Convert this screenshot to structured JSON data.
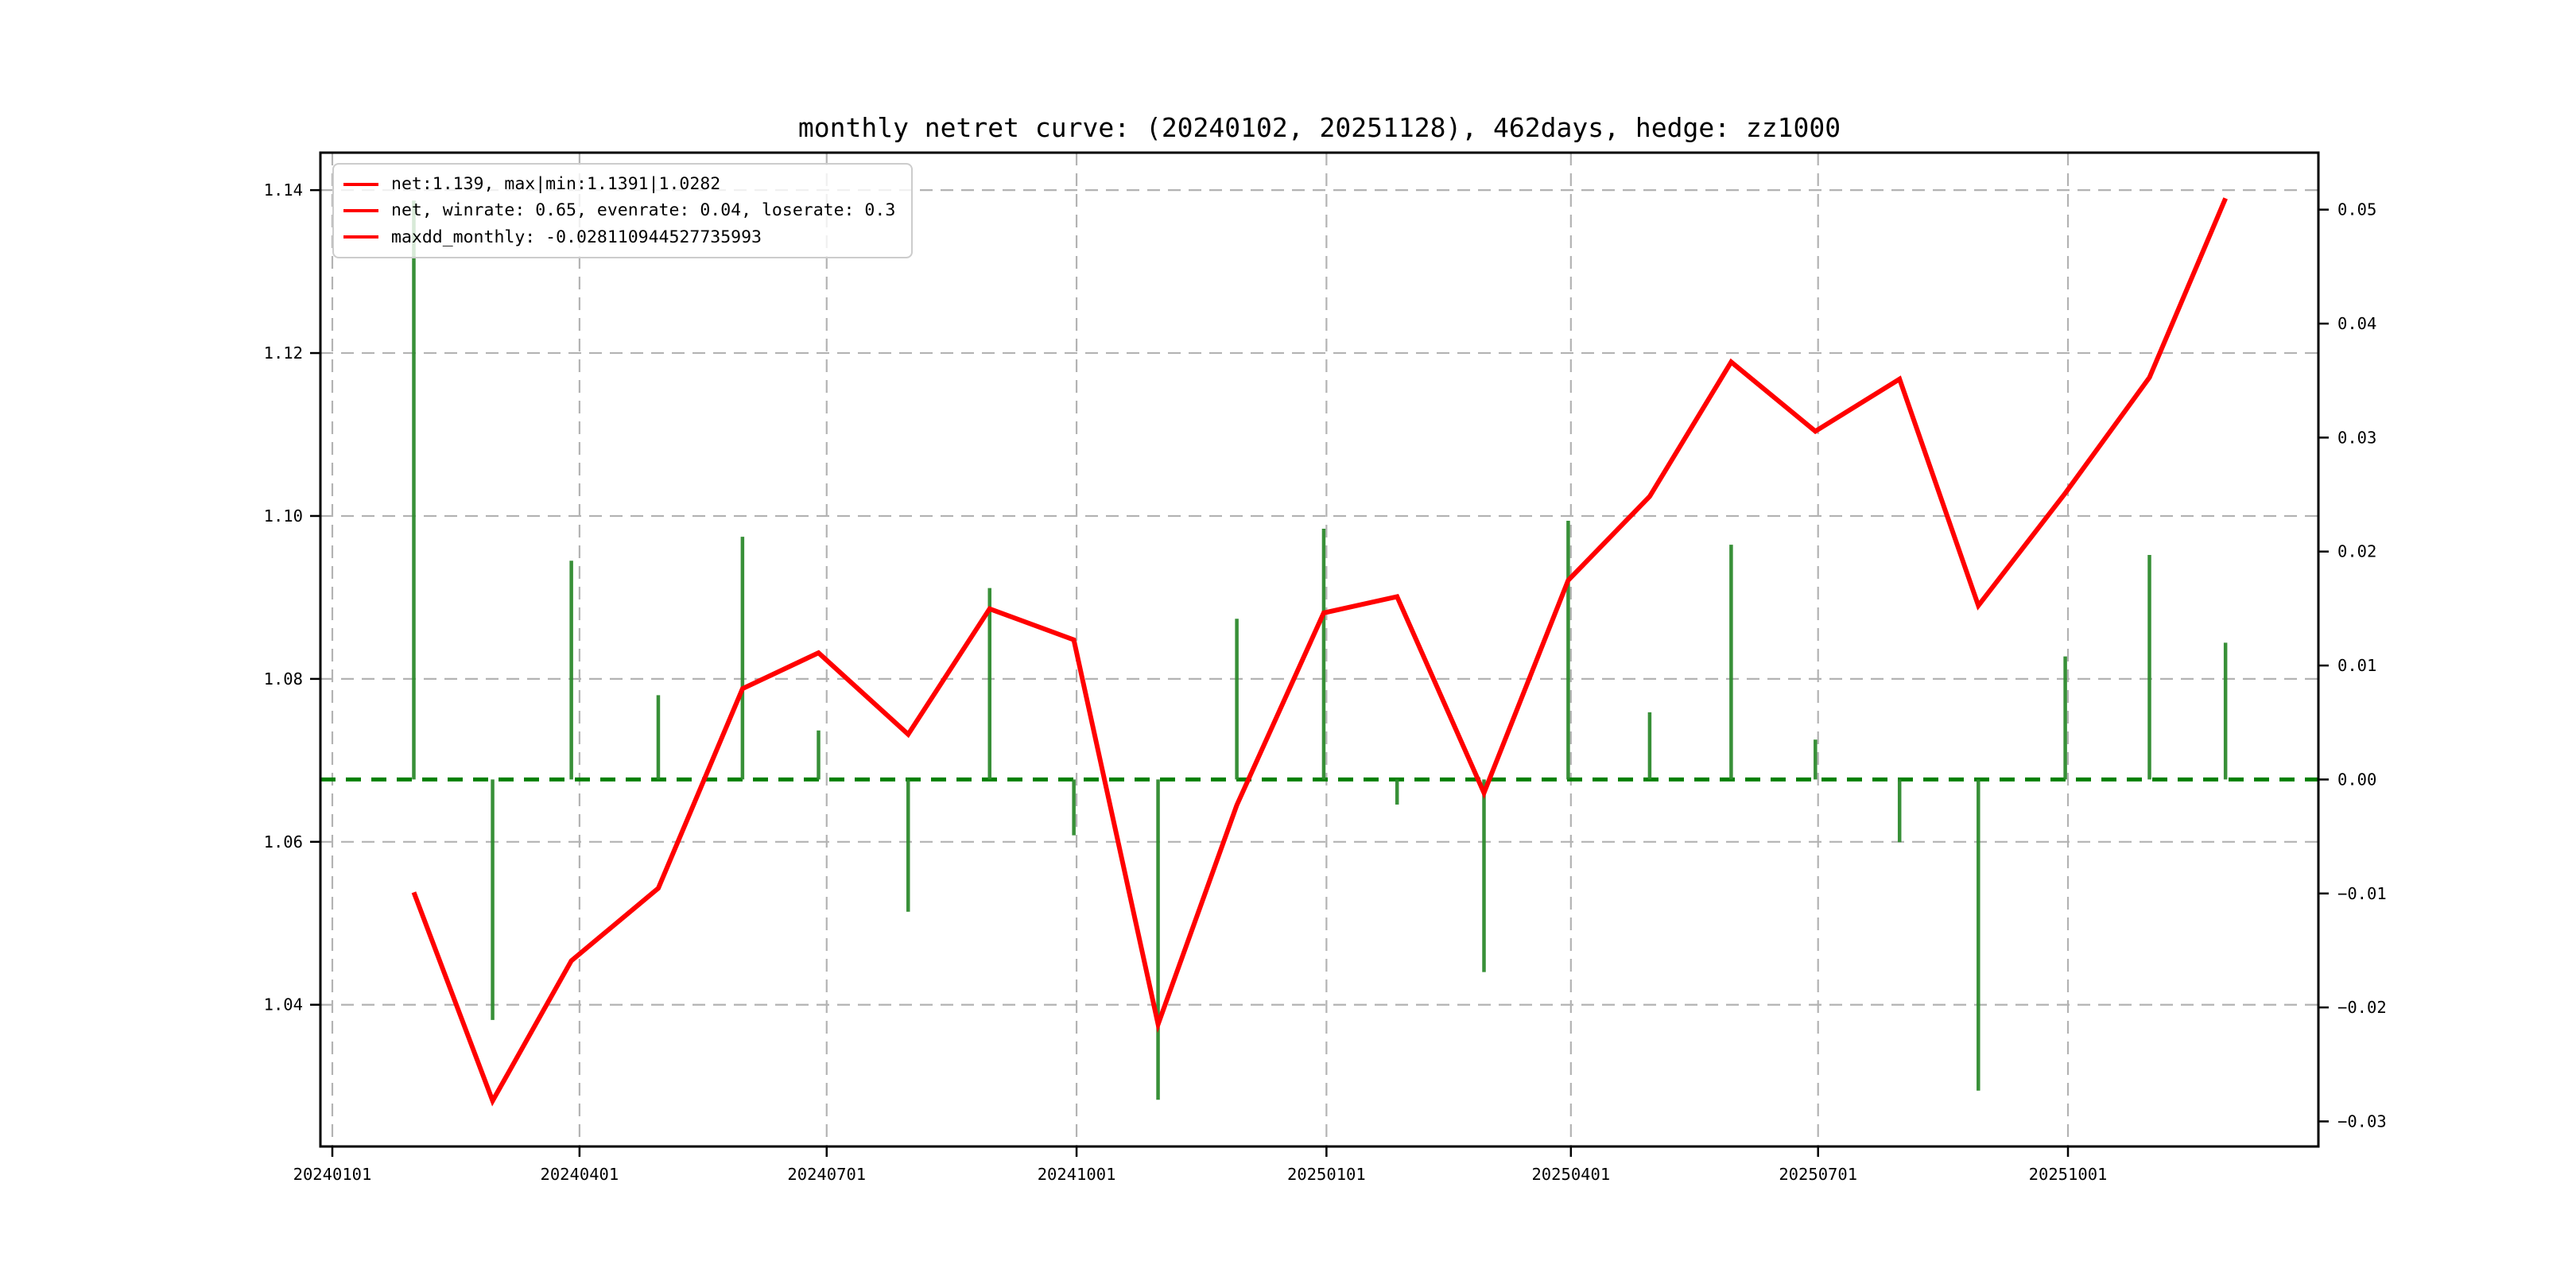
{
  "title": "monthly netret curve: (20240102, 20251128), 462days, hedge: zz1000",
  "legend": {
    "swatch_color": "#ff0000",
    "items": [
      {
        "label": "net:1.139, max|min:1.1391|1.0282"
      },
      {
        "label": "net, winrate: 0.65, evenrate: 0.04, loserate: 0.3"
      },
      {
        "label": "maxdd_monthly: -0.028110944527735993"
      }
    ]
  },
  "chart_data": {
    "type": "line+bar",
    "title": "monthly netret curve: (20240102, 20251128), 462days, hedge: zz1000",
    "grid": true,
    "background": "#ffffff",
    "x_axis": {
      "tick_dates": [
        "20240101",
        "20240401",
        "20240701",
        "20241001",
        "20250101",
        "20250401",
        "20250701",
        "20251001"
      ],
      "tick_labels": [
        "20240101",
        "20240401",
        "20240701",
        "20241001",
        "20250101",
        "20250401",
        "20250701",
        "20251001"
      ]
    },
    "left_axis": {
      "series": "net",
      "ticks": [
        1.14,
        1.12,
        1.1,
        1.08,
        1.06,
        1.04
      ],
      "tick_labels": [
        "1.14",
        "1.12",
        "1.10",
        "1.08",
        "1.06",
        "1.04"
      ],
      "ylim": [
        1.0226,
        1.1446
      ]
    },
    "right_axis": {
      "series": "monthly_return",
      "ticks": [
        0.05,
        0.04,
        0.03,
        0.02,
        0.01,
        0.0,
        -0.01,
        -0.02,
        -0.03
      ],
      "tick_labels": [
        "0.05",
        "0.04",
        "0.03",
        "0.02",
        "0.01",
        "0.00",
        "−0.01",
        "−0.02",
        "−0.03"
      ],
      "ylim": [
        -0.0322,
        0.055
      ],
      "zero_line": 0.0
    },
    "dates": [
      "20240131",
      "20240229",
      "20240329",
      "20240430",
      "20240531",
      "20240628",
      "20240731",
      "20240830",
      "20240930",
      "20241031",
      "20241129",
      "20241231",
      "20250127",
      "20250228",
      "20250331",
      "20250430",
      "20250530",
      "20250630",
      "20250731",
      "20250829",
      "20250930",
      "20251031",
      "20251128"
    ],
    "series": [
      {
        "name": "net",
        "type": "line",
        "axis": "left",
        "color": "#ff0000",
        "values": [
          1.0538,
          1.0282,
          1.0454,
          1.0543,
          1.0788,
          1.0832,
          1.0732,
          1.0886,
          1.0848,
          1.0376,
          1.0645,
          1.0881,
          1.0901,
          1.066,
          1.0921,
          1.1024,
          1.1189,
          1.1104,
          1.1168,
          1.089,
          1.1028,
          1.117,
          1.139
        ]
      },
      {
        "name": "monthly_return",
        "type": "bar",
        "axis": "right",
        "color": "#2e8b2e",
        "values": [
          0.0508,
          -0.0211,
          0.0192,
          0.0074,
          0.0213,
          0.0043,
          -0.0116,
          0.0168,
          -0.0049,
          -0.0281,
          0.0141,
          0.022,
          -0.0022,
          -0.0169,
          0.0227,
          0.0059,
          0.0206,
          0.0035,
          -0.0055,
          -0.0273,
          0.0108,
          0.0197,
          0.012
        ]
      }
    ],
    "annotations": {
      "max_net": 1.1391,
      "min_net": 1.0282,
      "final_net": 1.139,
      "winrate": 0.65,
      "evenrate": 0.04,
      "loserate": 0.3,
      "maxdd_monthly": -0.028110944527735993
    },
    "colors": {
      "net_line": "#ff0000",
      "bars": "#2e8b2e",
      "zero_dashed_line": "#008000",
      "gridlines": "#b3b3b3",
      "axis": "#000000"
    }
  }
}
